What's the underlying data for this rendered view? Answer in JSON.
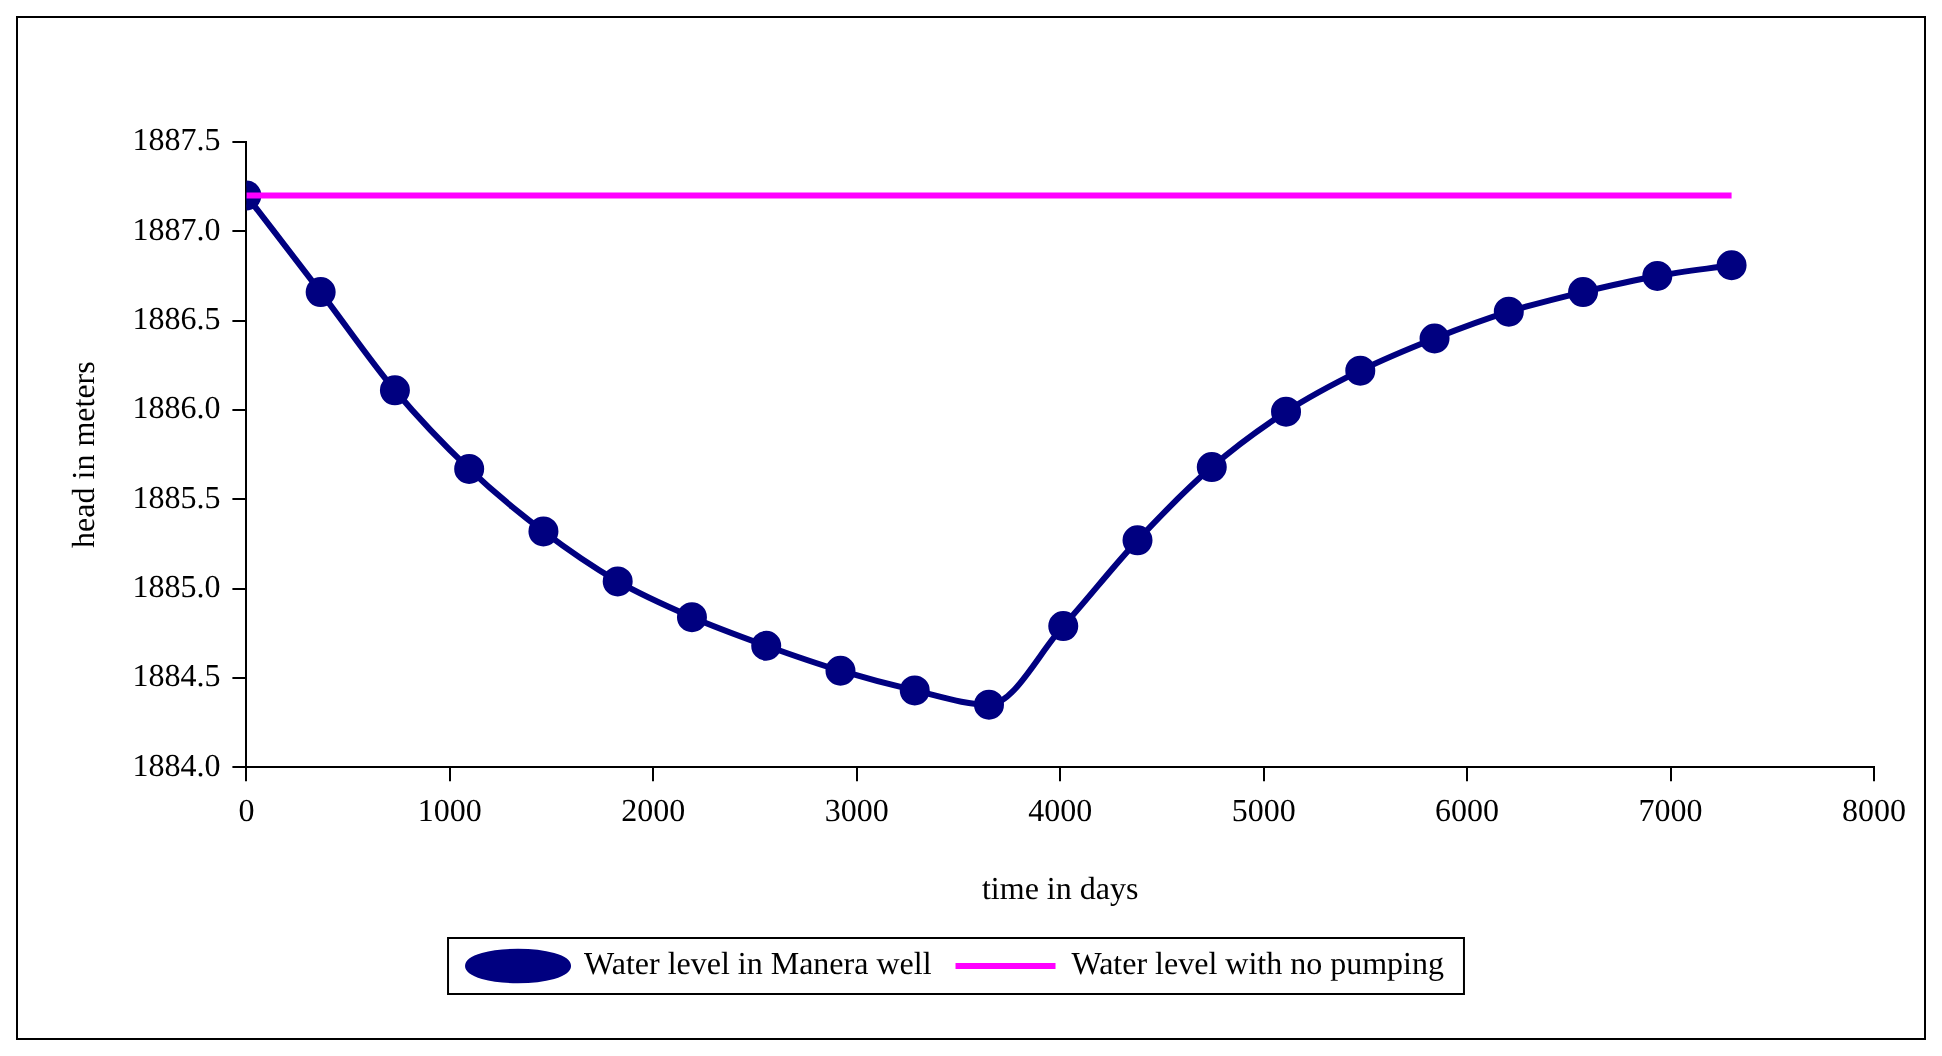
{
  "chart_data": {
    "type": "line",
    "xlabel": "time in days",
    "ylabel": "head in meters",
    "x": [
      0,
      365,
      730,
      1095,
      1460,
      1825,
      2190,
      2555,
      2920,
      3285,
      3650,
      4015,
      4380,
      4745,
      5110,
      5475,
      5840,
      6205,
      6570,
      6935,
      7300
    ],
    "series": [
      {
        "name": "Water level in Manera well",
        "color": "#000080",
        "marker": "circle",
        "values": [
          1887.2,
          1886.66,
          1886.11,
          1885.67,
          1885.32,
          1885.04,
          1884.84,
          1884.68,
          1884.54,
          1884.43,
          1884.35,
          1884.79,
          1885.27,
          1885.68,
          1885.99,
          1886.22,
          1886.4,
          1886.55,
          1886.66,
          1886.75,
          1886.81
        ]
      },
      {
        "name": "Water level with no pumping",
        "color": "#ff00ff",
        "marker": "none",
        "x": [
          0,
          7300
        ],
        "values": [
          1887.2,
          1887.2
        ]
      }
    ],
    "xlim": [
      0,
      8000
    ],
    "xticks": [
      0,
      1000,
      2000,
      3000,
      4000,
      5000,
      6000,
      7000,
      8000
    ],
    "ylim": [
      1884,
      1887.5
    ],
    "yticks": [
      {
        "value": 1884,
        "label": "1884.0"
      },
      1884.5,
      {
        "value": 1885,
        "label": "1885.0"
      },
      1885.5,
      {
        "value": 1886,
        "label": "1886.0"
      },
      1886.5,
      {
        "value": 1887,
        "label": "1887.0"
      },
      1887.5
    ],
    "grid": false,
    "legend": "bottom",
    "line_style": "solid"
  }
}
